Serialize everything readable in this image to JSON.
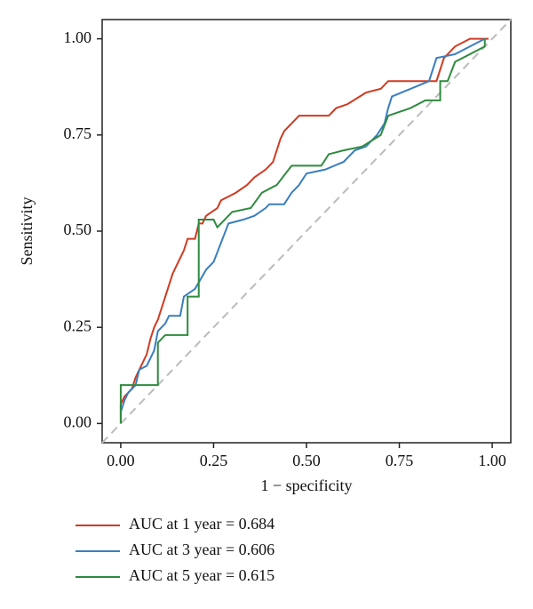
{
  "chart_data": {
    "type": "line",
    "x_label": "1 − specificity",
    "y_label": "Sensitivity",
    "xlim": [
      -0.05,
      1.05
    ],
    "ylim": [
      -0.05,
      1.05
    ],
    "xticks": [
      {
        "value": 0,
        "label": "0.00"
      },
      0.25,
      {
        "value": 0.5,
        "label": "0.50"
      },
      0.75,
      {
        "value": 1,
        "label": "1.00"
      }
    ],
    "yticks": [
      {
        "value": 0,
        "label": "0.00"
      },
      0.25,
      {
        "value": 0.5,
        "label": "0.50"
      },
      0.75,
      {
        "value": 1,
        "label": "1.00"
      }
    ],
    "series": [
      {
        "name": "AUC at 1 year = 0.684",
        "color": "#d03a22",
        "x": [
          0,
          0,
          0.01,
          0.02,
          0.03,
          0.04,
          0.05,
          0.06,
          0.07,
          0.08,
          0.09,
          0.1,
          0.11,
          0.12,
          0.13,
          0.14,
          0.15,
          0.16,
          0.17,
          0.18,
          0.2,
          0.21,
          0.22,
          0.23,
          0.26,
          0.27,
          0.31,
          0.34,
          0.36,
          0.39,
          0.41,
          0.42,
          0.43,
          0.44,
          0.46,
          0.48,
          0.56,
          0.58,
          0.61,
          0.66,
          0.7,
          0.72,
          0.85,
          0.87,
          0.9,
          0.94,
          0.99
        ],
        "values": [
          0,
          0.05,
          0.07,
          0.08,
          0.09,
          0.12,
          0.14,
          0.16,
          0.18,
          0.22,
          0.25,
          0.27,
          0.3,
          0.33,
          0.36,
          0.39,
          0.41,
          0.43,
          0.45,
          0.48,
          0.48,
          0.52,
          0.52,
          0.54,
          0.56,
          0.58,
          0.6,
          0.62,
          0.64,
          0.66,
          0.68,
          0.71,
          0.74,
          0.76,
          0.78,
          0.8,
          0.8,
          0.82,
          0.83,
          0.86,
          0.87,
          0.89,
          0.89,
          0.95,
          0.98,
          1,
          1
        ]
      },
      {
        "name": "AUC at 3 year = 0.606",
        "color": "#3a7ebf",
        "x": [
          0,
          0.01,
          0.02,
          0.04,
          0.05,
          0.07,
          0.09,
          0.1,
          0.12,
          0.13,
          0.16,
          0.17,
          0.2,
          0.23,
          0.25,
          0.27,
          0.29,
          0.33,
          0.36,
          0.39,
          0.4,
          0.44,
          0.46,
          0.48,
          0.5,
          0.55,
          0.6,
          0.63,
          0.66,
          0.69,
          0.71,
          0.72,
          0.73,
          0.78,
          0.83,
          0.85,
          0.9,
          0.94,
          0.98
        ],
        "values": [
          0.03,
          0.06,
          0.08,
          0.1,
          0.14,
          0.15,
          0.19,
          0.24,
          0.26,
          0.28,
          0.28,
          0.33,
          0.35,
          0.4,
          0.42,
          0.47,
          0.52,
          0.53,
          0.54,
          0.56,
          0.57,
          0.57,
          0.6,
          0.62,
          0.65,
          0.66,
          0.68,
          0.71,
          0.72,
          0.75,
          0.78,
          0.82,
          0.85,
          0.87,
          0.89,
          0.95,
          0.96,
          0.98,
          1
        ]
      },
      {
        "name": "AUC at 5 year = 0.615",
        "color": "#2e8b3e",
        "x": [
          0,
          0,
          0.1,
          0.1,
          0.12,
          0.18,
          0.18,
          0.21,
          0.21,
          0.25,
          0.26,
          0.3,
          0.35,
          0.38,
          0.42,
          0.46,
          0.54,
          0.56,
          0.6,
          0.65,
          0.7,
          0.72,
          0.78,
          0.82,
          0.86,
          0.86,
          0.88,
          0.9,
          0.98,
          0.98
        ],
        "values": [
          0,
          0.1,
          0.1,
          0.21,
          0.23,
          0.23,
          0.33,
          0.33,
          0.53,
          0.53,
          0.51,
          0.55,
          0.56,
          0.6,
          0.62,
          0.67,
          0.67,
          0.7,
          0.71,
          0.72,
          0.75,
          0.8,
          0.82,
          0.84,
          0.84,
          0.89,
          0.89,
          0.94,
          0.98,
          1
        ]
      }
    ]
  }
}
